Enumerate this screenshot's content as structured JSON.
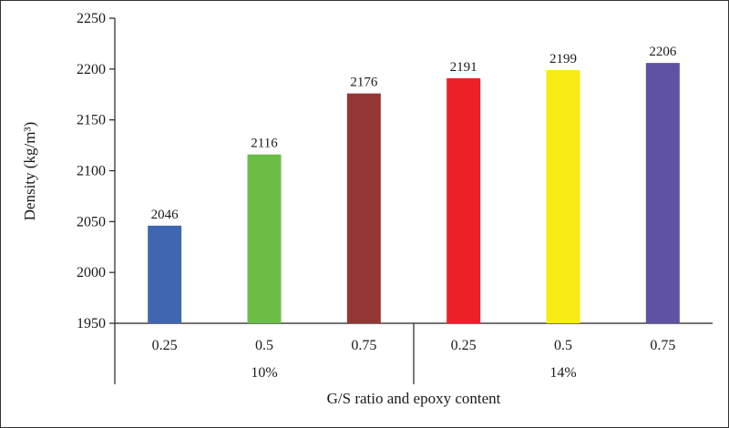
{
  "chart_data": {
    "type": "bar",
    "ylabel": "Density (kg/m³)",
    "xlabel": "G/S ratio and epoxy content",
    "ylim": [
      1950,
      2250
    ],
    "yticks": [
      1950,
      2000,
      2050,
      2100,
      2150,
      2200,
      2250
    ],
    "grid": false,
    "groups": [
      {
        "label": "10%",
        "categories": [
          "0.25",
          "0.5",
          "0.75"
        ]
      },
      {
        "label": "14%",
        "categories": [
          "0.25",
          "0.5",
          "0.75"
        ]
      }
    ],
    "values": [
      2046,
      2116,
      2176,
      2191,
      2199,
      2206
    ],
    "data_labels": [
      "2046",
      "2116",
      "2176",
      "2191",
      "2199",
      "2206"
    ],
    "colors": [
      "#3f67b1",
      "#6abd45",
      "#943634",
      "#ec2027",
      "#f7ec13",
      "#5f51a3"
    ]
  }
}
